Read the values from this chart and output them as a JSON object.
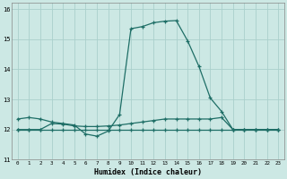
{
  "xlabel": "Humidex (Indice chaleur)",
  "x_ticks": [
    0,
    1,
    2,
    3,
    4,
    5,
    6,
    7,
    8,
    9,
    10,
    11,
    12,
    13,
    14,
    15,
    16,
    17,
    18,
    19,
    20,
    21,
    22,
    23
  ],
  "ylim": [
    11.0,
    16.2
  ],
  "yticks": [
    11,
    12,
    13,
    14,
    15,
    16
  ],
  "background_color": "#cce8e4",
  "grid_color": "#aad0cc",
  "line_color": "#1e6e66",
  "series1_x": [
    0,
    1,
    2,
    3,
    4,
    5,
    6,
    7,
    8,
    9,
    10,
    11,
    12,
    13,
    14,
    15,
    16,
    17,
    18,
    19,
    20,
    21,
    22,
    23
  ],
  "series1_y": [
    12.35,
    12.4,
    12.35,
    12.25,
    12.2,
    12.15,
    11.85,
    11.78,
    11.95,
    12.5,
    15.35,
    15.42,
    15.55,
    15.6,
    15.62,
    14.95,
    14.1,
    13.05,
    12.6,
    12.0,
    12.0,
    12.0,
    12.0,
    12.0
  ],
  "series2_x": [
    0,
    1,
    2,
    3,
    4,
    5,
    6,
    7,
    8,
    9,
    10,
    11,
    12,
    13,
    14,
    15,
    16,
    17,
    18,
    19,
    20,
    21,
    22,
    23
  ],
  "series2_y": [
    12.0,
    12.0,
    12.0,
    12.2,
    12.18,
    12.12,
    12.1,
    12.1,
    12.12,
    12.15,
    12.2,
    12.25,
    12.3,
    12.35,
    12.35,
    12.35,
    12.35,
    12.35,
    12.4,
    12.0,
    12.0,
    12.0,
    12.0,
    12.0
  ],
  "series3_x": [
    0,
    1,
    2,
    3,
    4,
    5,
    6,
    7,
    8,
    9,
    10,
    11,
    12,
    13,
    14,
    15,
    16,
    17,
    18,
    19,
    20,
    21,
    22,
    23
  ],
  "series3_y": [
    12.0,
    12.0,
    12.0,
    12.0,
    12.0,
    12.0,
    12.0,
    12.0,
    12.0,
    12.0,
    12.0,
    12.0,
    12.0,
    12.0,
    12.0,
    12.0,
    12.0,
    12.0,
    12.0,
    12.0,
    12.0,
    12.0,
    12.0,
    12.0
  ]
}
